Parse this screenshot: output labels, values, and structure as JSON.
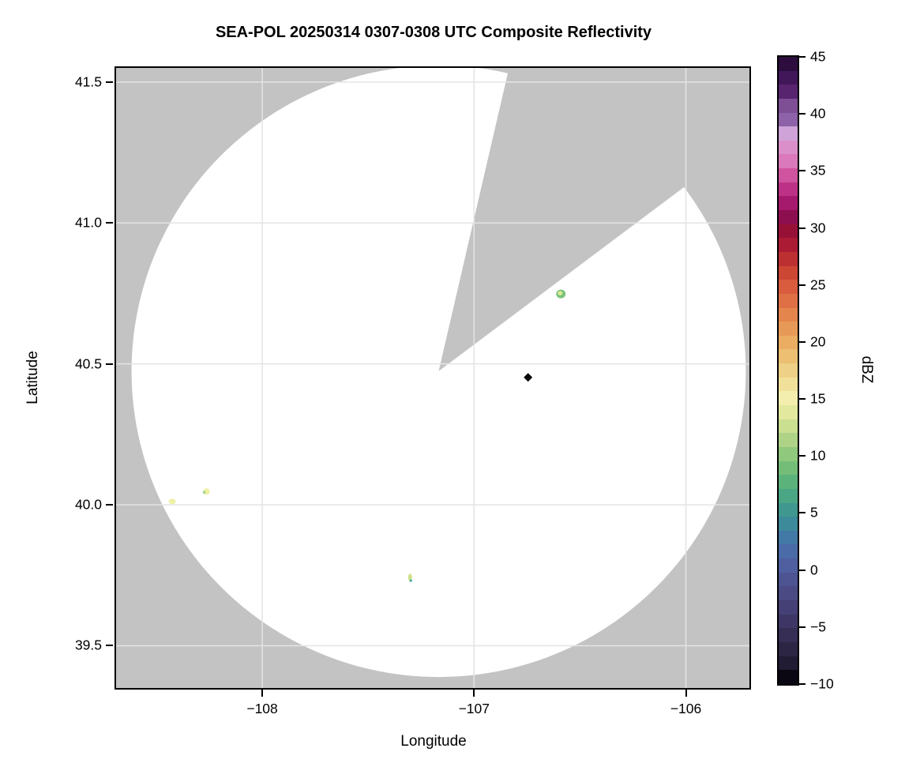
{
  "title": "SEA-POL 20250314 0307-0308 UTC Composite Reflectivity",
  "chart_data": {
    "type": "heatmap",
    "subtype": "radar_composite_reflectivity_ppi",
    "title": "SEA-POL 20250314 0307-0308 UTC Composite Reflectivity",
    "xlabel": "Longitude",
    "ylabel": "Latitude",
    "xlim": [
      -108.69,
      -105.7
    ],
    "ylim": [
      39.35,
      41.55
    ],
    "grid": true,
    "x_ticks": [
      -108,
      -107,
      -106
    ],
    "x_tick_labels": [
      "−108",
      "−107",
      "−106"
    ],
    "y_ticks": [
      41.5,
      41.0,
      40.5,
      40.0,
      39.5
    ],
    "y_tick_labels": [
      "41.5",
      "41.0",
      "40.5",
      "40.0",
      "39.5"
    ],
    "colors": {
      "no_data_background": "#c3c3c3",
      "scanned_clear_air": "#ffffff",
      "gridline": "#e4e4e4",
      "spine": "#000000"
    },
    "radar": {
      "center_lon": -107.167,
      "center_lat": 40.474,
      "range_deg_lon": 1.45,
      "range_deg_lat": 1.085,
      "missing_sector_azimuth_deg": [
        13,
        53
      ]
    },
    "echoes": [
      {
        "lon": -106.59,
        "lat": 40.748,
        "dbz_approx": 12,
        "w": 12,
        "h": 11,
        "fill": "#7cc37d",
        "core": "#dcea96",
        "note": "green echo with pale-yellow core, NE of radar"
      },
      {
        "lon": -108.425,
        "lat": 40.012,
        "dbz_approx": 15,
        "w": 9,
        "h": 7,
        "fill": "#eef0a6",
        "note": "pale-yellow echo, far west near 40.0"
      },
      {
        "lon": -108.263,
        "lat": 40.047,
        "dbz_approx": 15,
        "w": 8,
        "h": 8,
        "fill": "#edf0a2",
        "accent": {
          "color": "#9ccc88",
          "dx": -3,
          "dy": 1
        },
        "note": "pale-yellow echo with green west edge"
      },
      {
        "lon": -107.302,
        "lat": 39.742,
        "dbz_approx": 12,
        "w": 5,
        "h": 10,
        "fill": "#cfe18c",
        "accent": {
          "color": "#55b0a8",
          "dx": 1,
          "dy": 4
        },
        "note": "small yellow-green echo with teal south pixel"
      }
    ],
    "marker": {
      "lon": -106.745,
      "lat": 40.452,
      "shape": "diamond",
      "size": 11,
      "color": "#0a0a0a",
      "note": "black diamond site marker"
    },
    "colorbar": {
      "label": "dBZ",
      "range": [
        -10,
        45
      ],
      "ticks": [
        45,
        40,
        35,
        30,
        25,
        20,
        15,
        10,
        5,
        0,
        -5,
        -10
      ],
      "tick_labels": [
        "45",
        "40",
        "35",
        "30",
        "25",
        "20",
        "15",
        "10",
        "5",
        "0",
        "−5",
        "−10"
      ],
      "colormap_stops": [
        [
          -10,
          "#0b0712"
        ],
        [
          -8.75,
          "#211b33"
        ],
        [
          -7.5,
          "#2c2544"
        ],
        [
          -6.25,
          "#362e55"
        ],
        [
          -5,
          "#3e3766"
        ],
        [
          -3.75,
          "#454076"
        ],
        [
          -2.5,
          "#4b4a84"
        ],
        [
          -1.25,
          "#4e5492"
        ],
        [
          0,
          "#4f5fa0"
        ],
        [
          1.25,
          "#4a6ba7"
        ],
        [
          2.5,
          "#4379a6"
        ],
        [
          3.75,
          "#3d8a9b"
        ],
        [
          5,
          "#40978f"
        ],
        [
          6.25,
          "#4aa685"
        ],
        [
          7.5,
          "#5bb27b"
        ],
        [
          8.75,
          "#74bd78"
        ],
        [
          10,
          "#90c87d"
        ],
        [
          11.25,
          "#aed386"
        ],
        [
          12.5,
          "#cadf90"
        ],
        [
          13.75,
          "#e2e89e"
        ],
        [
          15,
          "#f4eeae"
        ],
        [
          16.25,
          "#f1e09a"
        ],
        [
          17.5,
          "#eed086"
        ],
        [
          18.75,
          "#ecbf72"
        ],
        [
          20,
          "#eaad62"
        ],
        [
          21.25,
          "#e79957"
        ],
        [
          22.5,
          "#e4854e"
        ],
        [
          23.75,
          "#df7046"
        ],
        [
          25,
          "#d85c3d"
        ],
        [
          26.25,
          "#cc4634"
        ],
        [
          27.5,
          "#bd3031"
        ],
        [
          28.75,
          "#ab1c34"
        ],
        [
          30,
          "#971136"
        ],
        [
          31.25,
          "#8e0f50"
        ],
        [
          32.5,
          "#a61a6d"
        ],
        [
          33.75,
          "#bd3287"
        ],
        [
          35,
          "#cf539f"
        ],
        [
          36.25,
          "#da79bc"
        ],
        [
          37.5,
          "#da8fca"
        ],
        [
          38.75,
          "#d0a3d8"
        ],
        [
          40,
          "#8e62a8"
        ],
        [
          41.25,
          "#7e4f94"
        ],
        [
          42.5,
          "#58246f"
        ],
        [
          43.75,
          "#41175a"
        ],
        [
          45,
          "#2d0d3d"
        ]
      ]
    }
  }
}
